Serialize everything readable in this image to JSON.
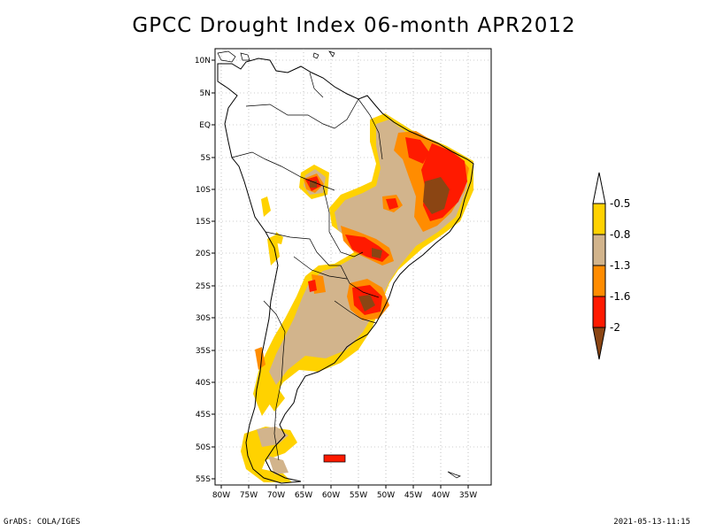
{
  "title": "GPCC Drought Index 06-month APR2012",
  "footer": {
    "left": "GrADS: COLA/IGES",
    "right": "2021-05-13-11:15"
  },
  "map": {
    "lat_labels": [
      "10N",
      "5N",
      "EQ",
      "5S",
      "10S",
      "15S",
      "20S",
      "25S",
      "30S",
      "35S",
      "40S",
      "45S",
      "50S",
      "55S"
    ],
    "lon_labels": [
      "80W",
      "75W",
      "70W",
      "65W",
      "60W",
      "55W",
      "50W",
      "45W",
      "40W",
      "35W"
    ],
    "lat_range": [
      -56,
      11
    ],
    "lon_range": [
      -81,
      -31
    ]
  },
  "legend": {
    "labels": [
      "-0.5",
      "-0.8",
      "-1.3",
      "-1.6",
      "-2"
    ],
    "colors": {
      "white": "#ffffff",
      "yellow": "#ffd200",
      "tan": "#d2b48c",
      "orange": "#ff8c00",
      "red": "#ff1a00",
      "brown": "#8b4513"
    }
  }
}
